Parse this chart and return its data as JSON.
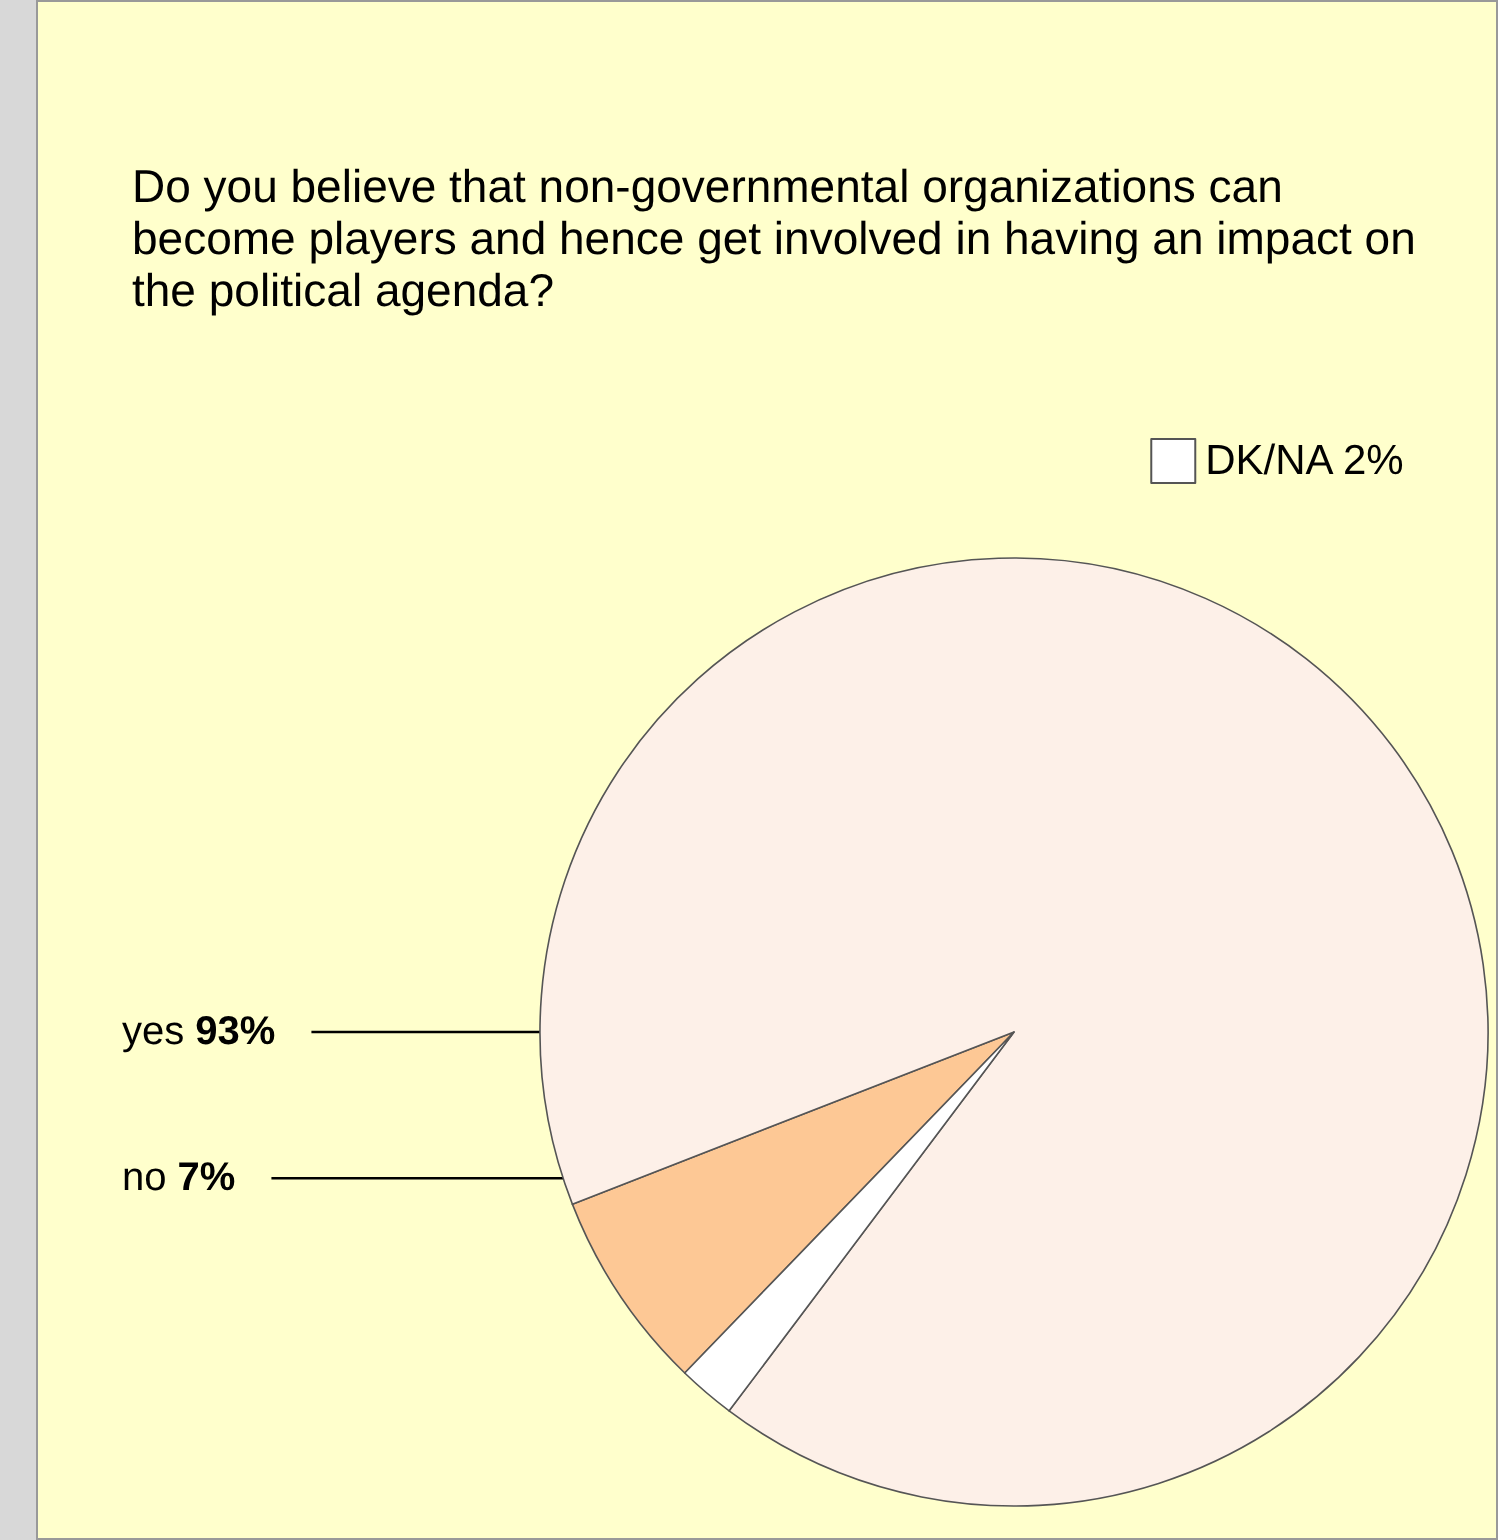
{
  "chart_data": {
    "type": "pie",
    "title": "Do you believe that non-governmental organizations can become players and hence get involved in having an impact on the political agenda?",
    "categories": [
      "no",
      "yes",
      "DK/NA"
    ],
    "values": [
      7,
      93,
      2
    ],
    "value_labels": [
      "7%",
      "93%",
      "2%"
    ],
    "colors": [
      "#fdc895",
      "#fdf0e8",
      "#ffffff"
    ],
    "legend": "top right"
  }
}
